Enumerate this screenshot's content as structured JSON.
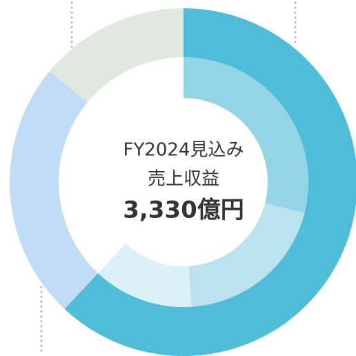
{
  "chart_data": {
    "type": "donut",
    "series": [
      {
        "colors": [
          "#4fbcd8",
          "#c0dcf6",
          "#dfe9df"
        ],
        "values": [
          62,
          24,
          14
        ]
      },
      {
        "colors": [
          "#93d5e6",
          "#bae3ef",
          "#daf1f6"
        ],
        "values": [
          29,
          20,
          13
        ]
      }
    ],
    "center_text": [
      "FY2024見込み",
      "売上収益",
      "3,330億円"
    ]
  }
}
